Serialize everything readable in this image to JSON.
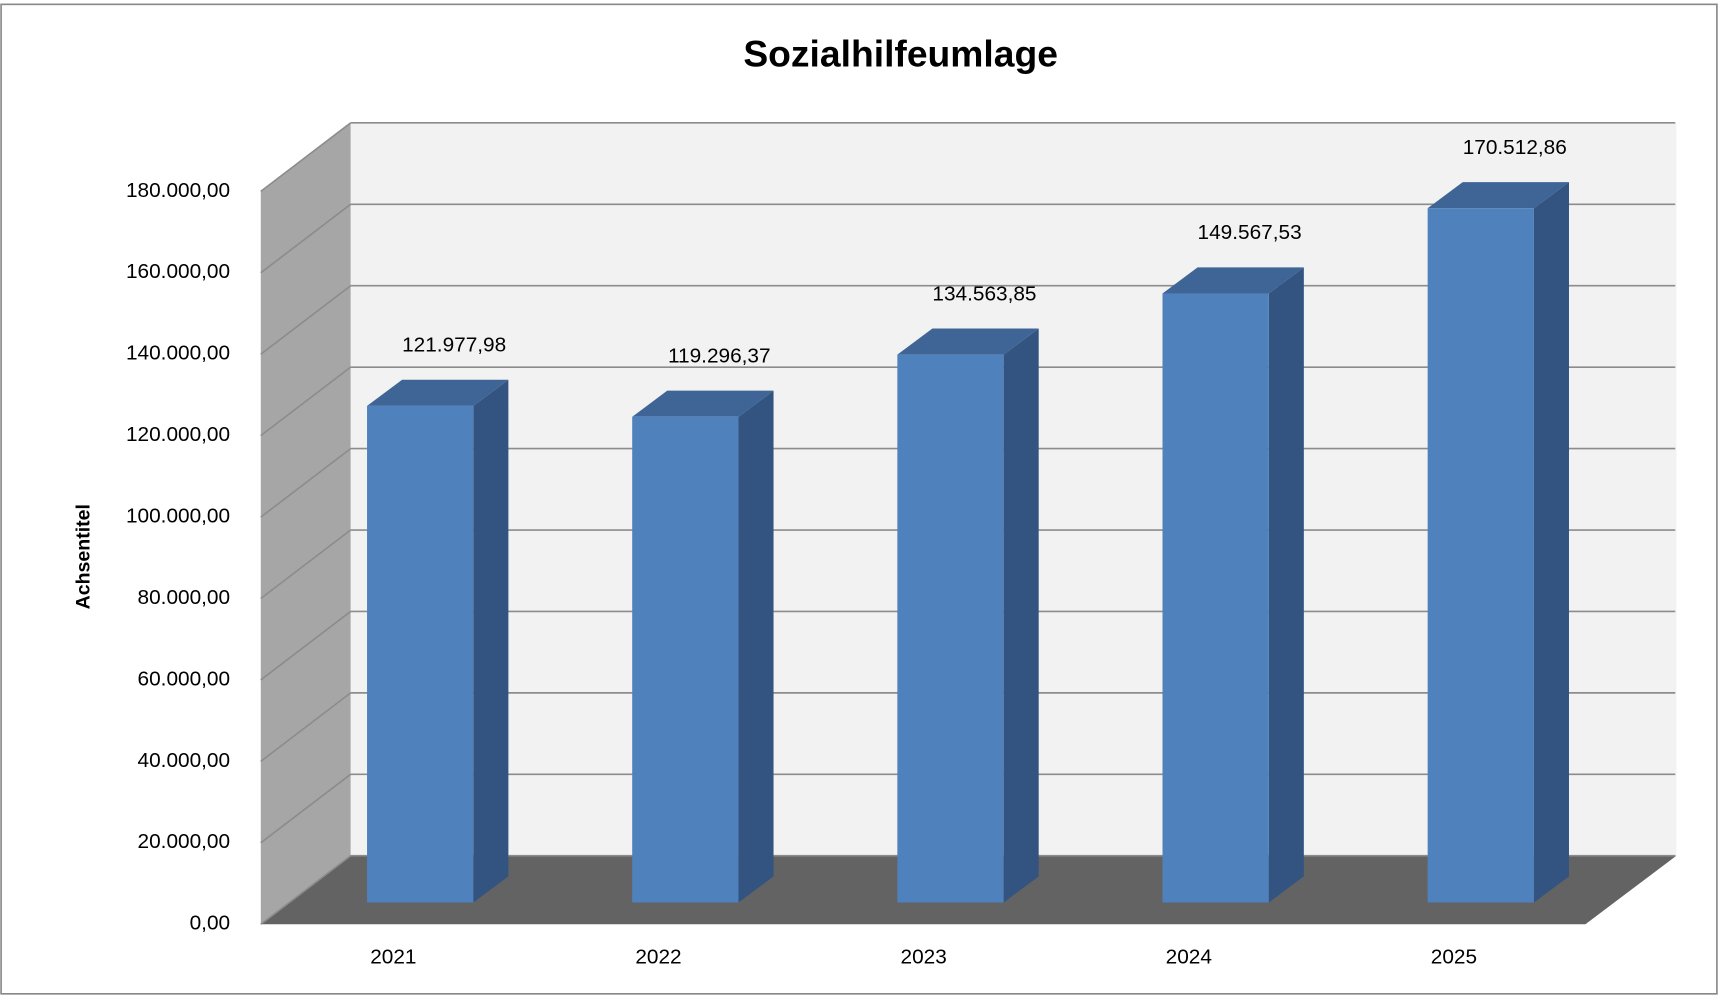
{
  "chart_data": {
    "type": "bar3d",
    "title": "Sozialhilfeumlage",
    "y_label": "Achsentitel",
    "categories": [
      "2021",
      "2022",
      "2023",
      "2024",
      "2025"
    ],
    "values": [
      121977.98,
      119296.37,
      134563.85,
      149567.53,
      170512.86
    ],
    "value_labels": [
      "121.977,98",
      "119.296,37",
      "134.563,85",
      "149.567,53",
      "170.512,86"
    ],
    "color": "#4f81bd",
    "ylim": [
      0,
      180000
    ],
    "yticks": [
      {
        "value": 0,
        "label": "0,00"
      },
      {
        "value": 20000,
        "label": "20.000,00"
      },
      {
        "value": 40000,
        "label": "40.000,00"
      },
      {
        "value": 60000,
        "label": "60.000,00"
      },
      {
        "value": 80000,
        "label": "80.000,00"
      },
      {
        "value": 100000,
        "label": "100.000,00"
      },
      {
        "value": 120000,
        "label": "120.000,00"
      },
      {
        "value": 140000,
        "label": "140.000,00"
      },
      {
        "value": 160000,
        "label": "160.000,00"
      },
      {
        "value": 180000,
        "label": "180.000,00"
      }
    ],
    "grid": true
  }
}
